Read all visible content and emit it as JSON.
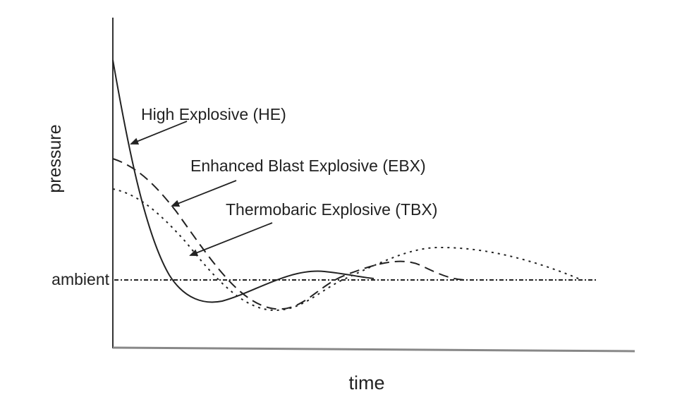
{
  "axes": {
    "y_label": "pressure",
    "x_label": "time",
    "reference_label": "ambient"
  },
  "annotations": [
    "High Explosive (HE)",
    "Enhanced Blast Explosive (EBX)",
    "Thermobaric Explosive (TBX)"
  ]
}
